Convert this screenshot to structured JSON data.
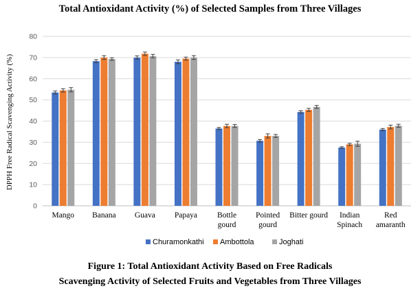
{
  "title": "Total Antioxidant  Activity (%) of Selected Samples from Three Villages",
  "caption": {
    "line1": "Figure 1: Total Antioxidant Activity Based on Free Radicals",
    "line2": "Scavenging Activity of Selected Fruits and Vegetables from Three Villages"
  },
  "chart_data": {
    "type": "bar",
    "title": "Total Antioxidant  Activity (%) of Selected Samples from Three Villages",
    "ylabel": "DPPH Free Radical Scavenging Activity (%)",
    "xlabel": "",
    "ylim": [
      0,
      80
    ],
    "yticks": [
      0,
      10,
      20,
      30,
      40,
      50,
      60,
      70,
      80
    ],
    "grid": true,
    "legend_position": "bottom",
    "categories": [
      [
        "Mango"
      ],
      [
        "Banana"
      ],
      [
        "Guava"
      ],
      [
        "Papaya"
      ],
      [
        "Bottle",
        "gourd"
      ],
      [
        "Pointed",
        "gourd"
      ],
      [
        "Bitter gourd"
      ],
      [
        "Indian",
        "Spinach"
      ],
      [
        "Red",
        "amaranth"
      ]
    ],
    "series": [
      {
        "name": "Churamonkathi",
        "color": "#4472c4",
        "values": [
          53.5,
          68.3,
          70.0,
          68.0,
          36.5,
          30.7,
          44.3,
          27.5,
          36.0
        ],
        "errors": [
          0.7,
          0.7,
          0.8,
          0.9,
          0.5,
          0.6,
          0.6,
          0.4,
          0.5
        ]
      },
      {
        "name": "Ambottola",
        "color": "#ed7d31",
        "values": [
          54.5,
          70.0,
          71.8,
          69.5,
          37.7,
          33.0,
          45.3,
          29.0,
          37.2
        ],
        "errors": [
          0.8,
          0.9,
          0.8,
          0.7,
          0.8,
          1.0,
          0.7,
          0.5,
          0.9
        ]
      },
      {
        "name": "Joghati",
        "color": "#a5a5a5",
        "values": [
          54.8,
          69.3,
          70.7,
          70.0,
          37.7,
          33.0,
          46.7,
          29.3,
          37.8
        ],
        "errors": [
          1.0,
          0.6,
          0.8,
          0.9,
          0.7,
          0.7,
          0.7,
          1.2,
          0.7
        ]
      }
    ]
  }
}
